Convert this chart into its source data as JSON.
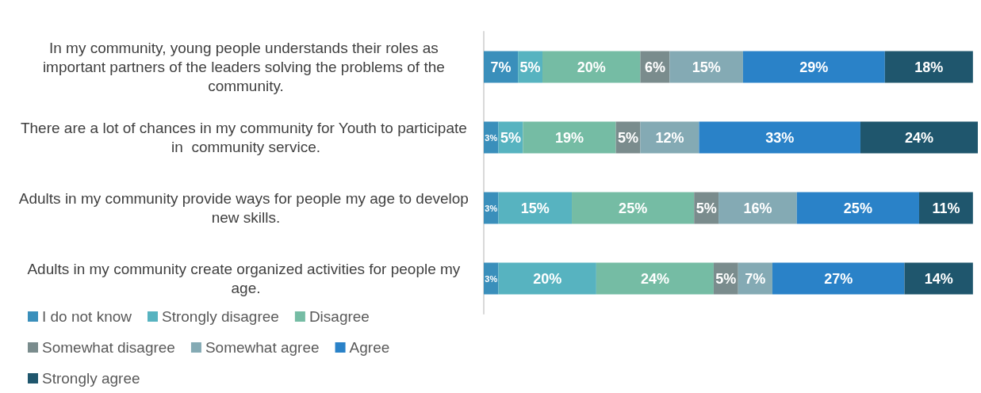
{
  "chart_data": {
    "type": "bar",
    "orientation": "horizontal",
    "stacked": true,
    "legend": "bottom left",
    "categories": [
      "In my community, young people understands their roles as important partners of the leaders solving the problems of the community.",
      "There are a lot of chances in my community for Youth to participate in  community service.",
      "Adults in my community provide ways for people my age to develop new skills.",
      "Adults in my community create organized activities for people my age."
    ],
    "series": [
      {
        "name": "I do not know",
        "color": "#3a8fbb",
        "values": [
          7,
          3,
          3,
          3
        ],
        "value_labels": [
          "7%",
          "3%",
          "3%",
          "3%"
        ]
      },
      {
        "name": "Strongly disagree",
        "color": "#57b3c0",
        "values": [
          5,
          5,
          15,
          20
        ],
        "value_labels": [
          "5%",
          "5%",
          "15%",
          "20%"
        ]
      },
      {
        "name": "Disagree",
        "color": "#75bca4",
        "values": [
          20,
          19,
          25,
          24
        ],
        "value_labels": [
          "20%",
          "19%",
          "25%",
          "24%"
        ]
      },
      {
        "name": "Somewhat disagree",
        "color": "#7a8c8d",
        "values": [
          6,
          5,
          5,
          5
        ],
        "value_labels": [
          "6%",
          "5%",
          "5%",
          "5%"
        ]
      },
      {
        "name": "Somewhat agree",
        "color": "#84aab4",
        "values": [
          15,
          12,
          16,
          7
        ],
        "value_labels": [
          "15%",
          "12%",
          "16%",
          "7%"
        ]
      },
      {
        "name": "Agree",
        "color": "#2a82c8",
        "values": [
          29,
          33,
          25,
          27
        ],
        "value_labels": [
          "29%",
          "33%",
          "25%",
          "27%"
        ]
      },
      {
        "name": "Strongly agree",
        "color": "#1f566d",
        "values": [
          18,
          24,
          11,
          14
        ],
        "value_labels": [
          "18%",
          "24%",
          "11%",
          "14%"
        ]
      }
    ]
  }
}
